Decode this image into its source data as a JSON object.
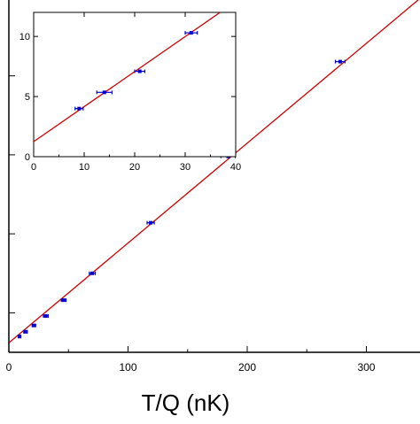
{
  "chart_data": [
    {
      "type": "scatter",
      "xlabel": "T/Q (nK)",
      "ylabel": "",
      "xlim": [
        0,
        345
      ],
      "ylim": [
        0,
        22.3
      ],
      "x_ticks": [
        0,
        100,
        200,
        300
      ],
      "x_tick_labels": [
        "0",
        "100",
        "200",
        "300"
      ],
      "y_ticks": [
        2.5,
        7.5,
        12.5,
        17.5
      ],
      "grid": false,
      "series": [
        {
          "kind": "points_with_xerr",
          "color": "#0000cc",
          "points": [
            {
              "x": 9,
              "y": 1.0,
              "xerr": 1.0
            },
            {
              "x": 14,
              "y": 1.3,
              "xerr": 1.5
            },
            {
              "x": 21,
              "y": 1.7,
              "xerr": 1.5
            },
            {
              "x": 31,
              "y": 2.3,
              "xerr": 2
            },
            {
              "x": 46,
              "y": 3.3,
              "xerr": 2
            },
            {
              "x": 70,
              "y": 5.0,
              "xerr": 2.5
            },
            {
              "x": 119,
              "y": 8.2,
              "xerr": 3
            },
            {
              "x": 184,
              "y": 12.4,
              "xerr": 6
            },
            {
              "x": 278,
              "y": 18.4,
              "xerr": 4
            }
          ]
        },
        {
          "kind": "fit_line",
          "color": "#cc0000",
          "x": [
            0,
            345
          ],
          "y": [
            0.6,
            22.4
          ]
        }
      ]
    },
    {
      "type": "scatter",
      "xlabel": "",
      "ylabel": "",
      "xlim": [
        0,
        40
      ],
      "ylim": [
        0,
        12
      ],
      "x_ticks": [
        0,
        10,
        20,
        30,
        40
      ],
      "x_tick_labels": [
        "0",
        "10",
        "20",
        "30",
        "40"
      ],
      "y_ticks": [
        0,
        5,
        10
      ],
      "y_tick_labels": [
        "0",
        "5",
        "10"
      ],
      "grid": false,
      "series": [
        {
          "kind": "points_with_xerr",
          "color": "#0000cc",
          "points": [
            {
              "x": 9,
              "y": 4.0,
              "xerr": 0.8
            },
            {
              "x": 14,
              "y": 5.35,
              "xerr": 1.5
            },
            {
              "x": 21,
              "y": 7.1,
              "xerr": 1.0
            },
            {
              "x": 31.2,
              "y": 10.3,
              "xerr": 1.2
            }
          ]
        },
        {
          "kind": "fit_line",
          "color": "#cc0000",
          "x": [
            0,
            40
          ],
          "y": [
            1.25,
            12.9
          ]
        }
      ]
    }
  ]
}
